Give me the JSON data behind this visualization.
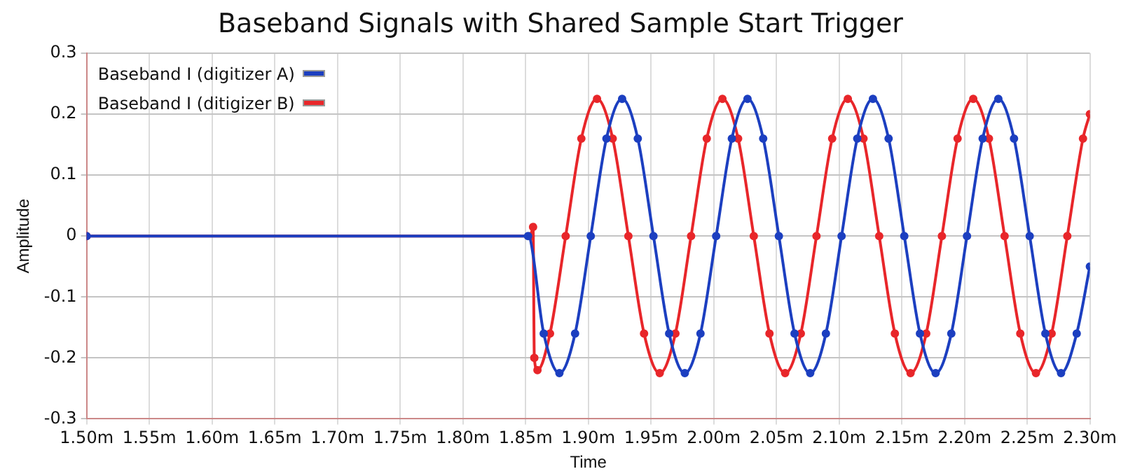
{
  "chart_data": {
    "type": "line",
    "title": "Baseband Signals with Shared Sample Start Trigger",
    "xlabel": "Time",
    "ylabel": "Amplitude",
    "xlim": [
      1.5,
      2.3
    ],
    "xticks": [
      {
        "value": 1.5,
        "label": "1.50m"
      },
      {
        "value": 1.55,
        "label": "1.55m"
      },
      {
        "value": 1.6,
        "label": "1.60m"
      },
      {
        "value": 1.65,
        "label": "1.65m"
      },
      {
        "value": 1.7,
        "label": "1.70m"
      },
      {
        "value": 1.75,
        "label": "1.75m"
      },
      {
        "value": 1.8,
        "label": "1.80m"
      },
      {
        "value": 1.85,
        "label": "1.85m"
      },
      {
        "value": 1.9,
        "label": "1.90m"
      },
      {
        "value": 1.95,
        "label": "1.95m"
      },
      {
        "value": 2.0,
        "label": "2.00m"
      },
      {
        "value": 2.05,
        "label": "2.05m"
      },
      {
        "value": 2.1,
        "label": "2.10m"
      },
      {
        "value": 2.15,
        "label": "2.15m"
      },
      {
        "value": 2.2,
        "label": "2.20m"
      },
      {
        "value": 2.25,
        "label": "2.25m"
      },
      {
        "value": 2.3,
        "label": "2.30m"
      }
    ],
    "ylim": [
      -0.3,
      0.3
    ],
    "yticks": [
      -0.3,
      -0.2,
      -0.1,
      0,
      0.1,
      0.2,
      0.3
    ],
    "grid": true,
    "legend": "top left",
    "marker": "circle",
    "line_style": "solid",
    "series": [
      {
        "name": "Baseband I (digitizer A)",
        "color": "#1c3fc0",
        "x": [
          1.5,
          1.852,
          1.8645,
          1.877,
          1.8895,
          1.902,
          1.9145,
          1.927,
          1.9395,
          1.952,
          1.9645,
          1.977,
          1.9895,
          2.002,
          2.0145,
          2.027,
          2.0395,
          2.052,
          2.0645,
          2.077,
          2.0895,
          2.102,
          2.1145,
          2.127,
          2.1395,
          2.152,
          2.1645,
          2.177,
          2.1895,
          2.202,
          2.2145,
          2.227,
          2.2395,
          2.252,
          2.2645,
          2.277,
          2.2895,
          2.3
        ],
        "values": [
          0,
          0,
          -0.16,
          -0.225,
          -0.16,
          0,
          0.16,
          0.225,
          0.16,
          0,
          -0.16,
          -0.225,
          -0.16,
          0,
          0.16,
          0.225,
          0.16,
          0,
          -0.16,
          -0.225,
          -0.16,
          0,
          0.16,
          0.225,
          0.16,
          0,
          -0.16,
          -0.225,
          -0.16,
          0,
          0.16,
          0.225,
          0.16,
          0,
          -0.16,
          -0.225,
          -0.16,
          -0.05
        ]
      },
      {
        "name": "Baseband I (ditigizer B)",
        "color": "#e8262a",
        "x": [
          1.5,
          1.854,
          1.856,
          1.857,
          1.8595,
          1.8695,
          1.882,
          1.8945,
          1.907,
          1.9195,
          1.932,
          1.9445,
          1.957,
          1.9695,
          1.982,
          1.9945,
          2.007,
          2.0195,
          2.032,
          2.0445,
          2.057,
          2.0695,
          2.082,
          2.0945,
          2.107,
          2.1195,
          2.132,
          2.1445,
          2.157,
          2.1695,
          2.182,
          2.1945,
          2.207,
          2.2195,
          2.232,
          2.2445,
          2.257,
          2.2695,
          2.282,
          2.2945,
          2.3
        ],
        "values": [
          0,
          0,
          0.015,
          -0.2,
          -0.22,
          -0.16,
          0,
          0.16,
          0.225,
          0.16,
          0,
          -0.16,
          -0.225,
          -0.16,
          0,
          0.16,
          0.225,
          0.16,
          0,
          -0.16,
          -0.225,
          -0.16,
          0,
          0.16,
          0.225,
          0.16,
          0,
          -0.16,
          -0.225,
          -0.16,
          0,
          0.16,
          0.225,
          0.16,
          0,
          -0.16,
          -0.225,
          -0.16,
          0,
          0.16,
          0.2
        ]
      }
    ]
  }
}
